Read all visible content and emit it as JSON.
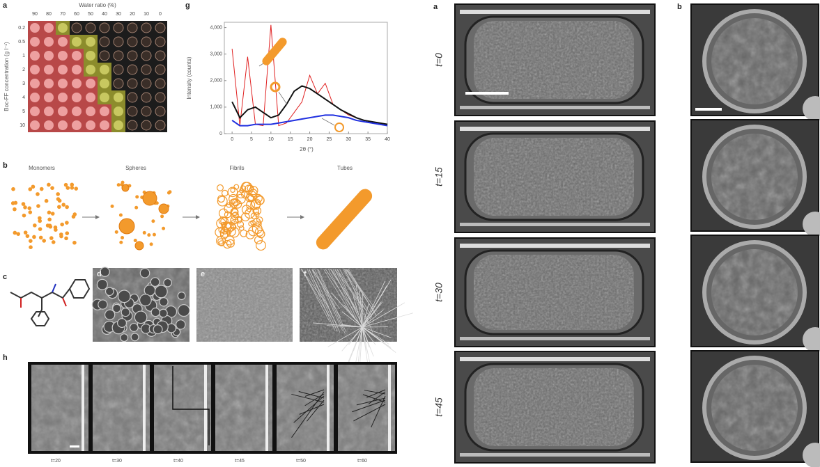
{
  "panel_a": {
    "label": "a",
    "x_title": "Water ratio (%)",
    "x_ticks": [
      "90",
      "80",
      "70",
      "60",
      "50",
      "40",
      "30",
      "20",
      "10",
      "0"
    ],
    "y_title": "Boc-FF concentration (g l⁻¹)",
    "y_ticks": [
      "0.2",
      "0.5",
      "1",
      "2",
      "3",
      "4",
      "5",
      "10"
    ]
  },
  "panel_g": {
    "type": "line",
    "label": "g",
    "ylabel": "Intensity (counts)",
    "xlabel": "2θ (°)",
    "xlim": [
      -2,
      40
    ],
    "ylim": [
      0,
      4200
    ],
    "xticks": [
      0,
      5,
      10,
      15,
      20,
      25,
      30,
      35,
      40
    ],
    "yticks": [
      0,
      {
        "value": 1000,
        "label": "1,000"
      },
      {
        "value": 2000,
        "label": "2,000"
      },
      {
        "value": 3000,
        "label": "3,000"
      },
      {
        "value": 4000,
        "label": "4,000"
      }
    ],
    "x": [
      0,
      2,
      4,
      6,
      8,
      10,
      12,
      14,
      16,
      18,
      20,
      22,
      24,
      26,
      28,
      30,
      32,
      34,
      36,
      38,
      40
    ],
    "series": [
      {
        "color": "#e02020",
        "values": [
          3200,
          300,
          2900,
          350,
          300,
          4100,
          300,
          400,
          800,
          1200,
          2200,
          1500,
          1900,
          1100,
          900,
          700,
          600,
          500,
          450,
          400,
          350
        ]
      },
      {
        "color": "#111111",
        "values": [
          1200,
          600,
          900,
          1000,
          800,
          600,
          700,
          1100,
          1600,
          1800,
          1700,
          1500,
          1300,
          1100,
          900,
          750,
          600,
          500,
          450,
          400,
          350
        ]
      },
      {
        "color": "#2030e0",
        "values": [
          500,
          300,
          300,
          350,
          350,
          350,
          400,
          450,
          500,
          550,
          600,
          650,
          700,
          700,
          650,
          600,
          500,
          450,
          400,
          350,
          300
        ]
      }
    ]
  },
  "panel_b": {
    "label": "b",
    "stages": [
      "Monomers",
      "Spheres",
      "Fibrils",
      "Tubes"
    ]
  },
  "panel_c": {
    "label": "c"
  },
  "panel_d": {
    "label": "d"
  },
  "panel_e": {
    "label": "e"
  },
  "panel_f": {
    "label": "f"
  },
  "panel_h": {
    "label": "h",
    "times": [
      "t=20",
      "t=30",
      "t=40",
      "t=45",
      "t=50",
      "t=60"
    ]
  },
  "panel_a_right": {
    "label": "a",
    "times": [
      "t=0",
      "t=15",
      "t=30",
      "t=45"
    ]
  },
  "panel_b_right": {
    "label": "b"
  }
}
